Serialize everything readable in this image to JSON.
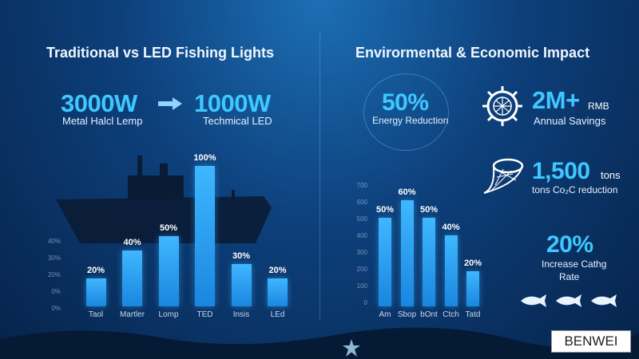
{
  "left": {
    "title": "Traditional vs LED Fishing Lights",
    "from_value": "3000W",
    "from_label": "Metal Halcl Lemp",
    "to_value": "1000W",
    "to_label": "Techmical LED",
    "chart_data": {
      "type": "bar",
      "categories": [
        "Taol",
        "Martler",
        "Lomp",
        "TED",
        "Insis",
        "LEd"
      ],
      "values": [
        20,
        40,
        50,
        100,
        30,
        20
      ],
      "data_labels": [
        "20%",
        "40%",
        "50%",
        "100%",
        "30%",
        "20%"
      ],
      "y_ticks": [
        "40%",
        "30%",
        "20%",
        "0%",
        "0%"
      ]
    }
  },
  "right": {
    "title": "Envirormental & Economic Impact",
    "energy": {
      "value": "50%",
      "label": "Energy Reduction"
    },
    "savings": {
      "value": "2M+",
      "unit": "RMB",
      "label": "Annual Savings"
    },
    "co2": {
      "value": "1,500",
      "unit": "tons",
      "label": "tons Co₂C reduction"
    },
    "catch": {
      "value": "20%",
      "label1": "Increase Cathg",
      "label2": "Rate"
    },
    "chart_data": {
      "type": "bar",
      "categories": [
        "Am",
        "Sbop",
        "bOnt",
        "Ctch",
        "Tatd"
      ],
      "values": [
        50,
        60,
        50,
        40,
        20
      ],
      "data_labels": [
        "50%",
        "60%",
        "50%",
        "40%",
        "20%"
      ],
      "y_ticks": [
        "700",
        "600",
        "500",
        "400",
        "300",
        "200",
        "100",
        "0"
      ]
    }
  },
  "brand": "BENWEI",
  "colors": {
    "accent": "#3ec8ff",
    "bar": "#2aa6f5"
  }
}
